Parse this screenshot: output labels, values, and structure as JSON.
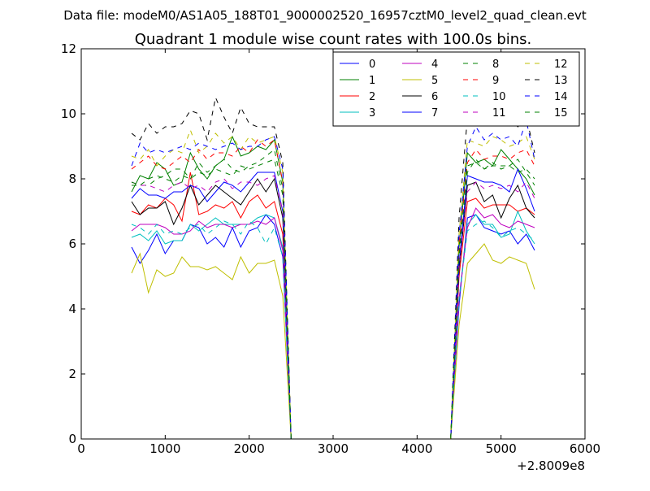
{
  "chart_data": {
    "type": "line",
    "suptitle": "Data file: modeM0/AS1A05_188T01_9000002520_16957cztM0_level2_quad_clean.evt",
    "title": "Quadrant 1 module wise count rates with 100.0s bins.",
    "xlabel": "",
    "ylabel": "",
    "x_offset_label": "+2.8009e8",
    "xlim": [
      0,
      6000
    ],
    "ylim": [
      0,
      12
    ],
    "xticks": [
      0,
      1000,
      2000,
      3000,
      4000,
      5000,
      6000
    ],
    "yticks": [
      0,
      2,
      4,
      6,
      8,
      10,
      12
    ],
    "xtick_labels": [
      "0",
      "1000",
      "2000",
      "3000",
      "4000",
      "5000",
      "6000"
    ],
    "ytick_labels": [
      "0",
      "2",
      "4",
      "6",
      "8",
      "10",
      "12"
    ],
    "grid": false,
    "legend_position": "top-right",
    "legend_columns": 4,
    "x": [
      600,
      700,
      800,
      900,
      1000,
      1100,
      1200,
      1300,
      1400,
      1500,
      1600,
      1700,
      1800,
      1900,
      2000,
      2100,
      2200,
      2300,
      2400,
      2500,
      2600,
      2700,
      2800,
      2900,
      3000,
      3100,
      3200,
      3300,
      3400,
      3500,
      3600,
      3700,
      3800,
      3900,
      4000,
      4100,
      4200,
      4300,
      4400,
      4500,
      4600,
      4700,
      4800,
      4900,
      5000,
      5100,
      5200,
      5300,
      5400
    ],
    "series": [
      {
        "name": "0",
        "color": "#0000ff",
        "dash": "solid",
        "values": [
          5.9,
          5.4,
          5.8,
          6.3,
          5.7,
          6.1,
          6.1,
          6.6,
          6.5,
          6.0,
          6.2,
          5.9,
          6.5,
          5.9,
          6.4,
          6.5,
          6.9,
          6.6,
          5.6,
          0,
          0,
          0,
          0,
          0,
          0,
          0,
          0,
          0,
          0,
          0,
          0,
          0,
          0,
          0,
          0,
          0,
          0,
          0,
          0,
          4.1,
          6.8,
          6.9,
          6.5,
          6.4,
          6.3,
          6.4,
          6.0,
          6.3,
          5.8
        ]
      },
      {
        "name": "1",
        "color": "#008000",
        "dash": "solid",
        "values": [
          7.6,
          8.1,
          8.0,
          8.5,
          8.3,
          7.8,
          7.9,
          8.8,
          8.3,
          8.0,
          8.4,
          8.6,
          9.3,
          8.7,
          8.8,
          9.0,
          8.9,
          9.2,
          7.9,
          0,
          0,
          0,
          0,
          0,
          0,
          0,
          0,
          0,
          0,
          0,
          0,
          0,
          0,
          0,
          0,
          0,
          0,
          0,
          0,
          5.9,
          8.8,
          8.5,
          8.6,
          8.4,
          8.9,
          8.6,
          8.3,
          8.0,
          7.5
        ]
      },
      {
        "name": "2",
        "color": "#ff0000",
        "dash": "solid",
        "values": [
          7.0,
          6.9,
          7.2,
          7.1,
          7.4,
          7.2,
          6.7,
          8.2,
          6.9,
          7.0,
          7.2,
          7.1,
          7.3,
          6.8,
          7.3,
          7.5,
          7.1,
          7.3,
          6.3,
          0,
          0,
          0,
          0,
          0,
          0,
          0,
          0,
          0,
          0,
          0,
          0,
          0,
          0,
          0,
          0,
          0,
          0,
          0,
          0,
          5.0,
          7.3,
          7.4,
          7.1,
          7.2,
          7.2,
          7.2,
          7.0,
          7.1,
          6.9
        ]
      },
      {
        "name": "3",
        "color": "#00bfbf",
        "dash": "solid",
        "values": [
          6.2,
          6.3,
          6.1,
          6.4,
          6.0,
          6.1,
          6.1,
          6.6,
          6.4,
          6.6,
          6.8,
          6.6,
          6.6,
          6.6,
          6.6,
          6.8,
          6.9,
          6.8,
          5.9,
          0,
          0,
          0,
          0,
          0,
          0,
          0,
          0,
          0,
          0,
          0,
          0,
          0,
          0,
          0,
          0,
          0,
          0,
          0,
          0,
          4.3,
          6.6,
          6.9,
          6.6,
          6.6,
          6.2,
          6.3,
          7.0,
          6.4,
          6.0
        ]
      },
      {
        "name": "4",
        "color": "#bf00bf",
        "dash": "solid",
        "values": [
          6.4,
          6.6,
          6.6,
          6.6,
          6.5,
          6.3,
          6.3,
          6.4,
          6.7,
          6.5,
          6.6,
          6.6,
          6.5,
          6.6,
          6.6,
          6.7,
          6.6,
          6.8,
          5.8,
          0,
          0,
          0,
          0,
          0,
          0,
          0,
          0,
          0,
          0,
          0,
          0,
          0,
          0,
          0,
          0,
          0,
          0,
          0,
          0,
          4.3,
          6.5,
          7.1,
          6.8,
          6.9,
          6.6,
          6.5,
          6.7,
          6.6,
          6.5
        ]
      },
      {
        "name": "5",
        "color": "#bfbf00",
        "dash": "solid",
        "values": [
          5.1,
          5.7,
          4.5,
          5.2,
          5.0,
          5.1,
          5.6,
          5.3,
          5.3,
          5.2,
          5.3,
          5.1,
          4.9,
          5.6,
          5.1,
          5.4,
          5.4,
          5.5,
          4.4,
          0,
          0,
          0,
          0,
          0,
          0,
          0,
          0,
          0,
          0,
          0,
          0,
          0,
          0,
          0,
          0,
          0,
          0,
          0,
          0,
          3.5,
          5.4,
          5.7,
          6.0,
          5.5,
          5.4,
          5.6,
          5.5,
          5.4,
          4.6
        ]
      },
      {
        "name": "6",
        "color": "#000000",
        "dash": "solid",
        "values": [
          7.3,
          6.9,
          7.1,
          7.1,
          7.3,
          6.6,
          7.1,
          7.8,
          7.2,
          7.5,
          7.8,
          7.6,
          7.4,
          7.2,
          7.6,
          8.0,
          7.6,
          8.0,
          6.8,
          0,
          0,
          0,
          0,
          0,
          0,
          0,
          0,
          0,
          0,
          0,
          0,
          0,
          0,
          0,
          0,
          0,
          0,
          0,
          0,
          5.2,
          7.8,
          7.9,
          7.3,
          7.5,
          6.8,
          7.4,
          7.8,
          7.1,
          6.8
        ]
      },
      {
        "name": "7",
        "color": "#0000ff",
        "dash": "solid",
        "values": [
          7.4,
          7.7,
          7.5,
          7.5,
          7.4,
          7.6,
          7.6,
          7.8,
          7.7,
          7.3,
          7.6,
          7.9,
          7.8,
          7.6,
          7.9,
          8.2,
          8.2,
          8.2,
          7.0,
          0,
          0,
          0,
          0,
          0,
          0,
          0,
          0,
          0,
          0,
          0,
          0,
          0,
          0,
          0,
          0,
          0,
          0,
          0,
          0,
          5.4,
          8.1,
          8.0,
          7.9,
          7.9,
          7.8,
          7.6,
          8.3,
          7.7,
          7.0
        ]
      },
      {
        "name": "8",
        "color": "#008000",
        "dash": "dashed",
        "values": [
          7.8,
          7.8,
          7.8,
          8.0,
          8.1,
          8.3,
          8.3,
          8.0,
          8.5,
          8.2,
          8.4,
          8.6,
          8.3,
          8.2,
          8.4,
          8.5,
          8.7,
          8.9,
          7.7,
          0,
          0,
          0,
          0,
          0,
          0,
          0,
          0,
          0,
          0,
          0,
          0,
          0,
          0,
          0,
          0,
          0,
          0,
          0,
          0,
          5.8,
          8.2,
          8.6,
          8.3,
          8.4,
          8.4,
          8.4,
          8.2,
          8.3,
          8.0
        ]
      },
      {
        "name": "9",
        "color": "#ff0000",
        "dash": "dashed",
        "values": [
          8.3,
          8.5,
          8.7,
          8.4,
          8.3,
          8.5,
          8.7,
          8.5,
          8.9,
          8.6,
          8.8,
          8.8,
          8.7,
          9.0,
          8.8,
          9.2,
          9.0,
          9.2,
          7.9,
          0,
          0,
          0,
          0,
          0,
          0,
          0,
          0,
          0,
          0,
          0,
          0,
          0,
          0,
          0,
          0,
          0,
          0,
          0,
          0,
          6.0,
          8.5,
          8.9,
          8.6,
          8.7,
          8.7,
          8.6,
          8.8,
          8.9,
          8.4
        ]
      },
      {
        "name": "10",
        "color": "#00bfbf",
        "dash": "dashed",
        "values": [
          6.6,
          6.5,
          6.3,
          6.6,
          6.3,
          6.4,
          6.3,
          6.5,
          6.6,
          6.3,
          6.5,
          6.7,
          6.6,
          6.3,
          6.7,
          6.5,
          6.0,
          6.5,
          5.6,
          0,
          0,
          0,
          0,
          0,
          0,
          0,
          0,
          0,
          0,
          0,
          0,
          0,
          0,
          0,
          0,
          0,
          0,
          0,
          0,
          4.3,
          6.4,
          6.6,
          6.7,
          6.5,
          6.2,
          6.4,
          6.5,
          6.3,
          6.1
        ]
      },
      {
        "name": "11",
        "color": "#bf00bf",
        "dash": "dashed",
        "values": [
          7.9,
          7.8,
          7.8,
          7.7,
          7.6,
          7.8,
          7.9,
          7.7,
          7.8,
          7.6,
          7.9,
          8.0,
          7.7,
          7.9,
          7.9,
          7.8,
          8.0,
          8.1,
          7.0,
          0,
          0,
          0,
          0,
          0,
          0,
          0,
          0,
          0,
          0,
          0,
          0,
          0,
          0,
          0,
          0,
          0,
          0,
          0,
          0,
          5.3,
          7.6,
          7.9,
          7.7,
          7.8,
          7.7,
          7.8,
          7.6,
          7.9,
          7.4
        ]
      },
      {
        "name": "12",
        "color": "#bfbf00",
        "dash": "dashed",
        "values": [
          8.7,
          8.6,
          8.9,
          8.4,
          8.7,
          8.9,
          8.8,
          9.5,
          8.8,
          9.0,
          9.4,
          9.1,
          9.3,
          8.9,
          9.3,
          9.1,
          9.2,
          9.3,
          8.2,
          0,
          0,
          0,
          0,
          0,
          0,
          0,
          0,
          0,
          0,
          0,
          0,
          0,
          0,
          0,
          0,
          0,
          0,
          0,
          0,
          6.3,
          9.2,
          9.1,
          9.0,
          9.3,
          9.2,
          9.0,
          9.1,
          9.3,
          8.6
        ]
      },
      {
        "name": "13",
        "color": "#000000",
        "dash": "dashed",
        "values": [
          9.4,
          9.2,
          9.7,
          9.4,
          9.6,
          9.6,
          9.7,
          10.1,
          10.0,
          9.2,
          10.5,
          9.9,
          9.4,
          10.2,
          9.7,
          9.6,
          9.6,
          9.6,
          8.5,
          0,
          0,
          0,
          0,
          0,
          0,
          0,
          0,
          0,
          0,
          0,
          0,
          0,
          0,
          0,
          0,
          0,
          0,
          0,
          0,
          6.8,
          9.9,
          10.2,
          10.1,
          9.7,
          9.8,
          10.0,
          9.6,
          9.9,
          8.8
        ]
      },
      {
        "name": "14",
        "color": "#0000ff",
        "dash": "dashed",
        "values": [
          8.4,
          9.1,
          8.8,
          8.9,
          8.8,
          8.9,
          9.0,
          8.9,
          9.1,
          9.0,
          8.9,
          9.0,
          9.1,
          8.9,
          9.0,
          9.0,
          9.2,
          9.3,
          8.3,
          0,
          0,
          0,
          0,
          0,
          0,
          0,
          0,
          0,
          0,
          0,
          0,
          0,
          0,
          0,
          0,
          0,
          0,
          0,
          0,
          6.3,
          9.0,
          9.6,
          9.2,
          9.4,
          9.2,
          9.3,
          9.0,
          9.8,
          8.6
        ]
      },
      {
        "name": "15",
        "color": "#008000",
        "dash": "dashed",
        "values": [
          7.9,
          7.8,
          8.0,
          8.1,
          8.0,
          7.9,
          8.1,
          8.0,
          8.2,
          8.1,
          8.3,
          8.2,
          8.1,
          8.4,
          8.3,
          8.4,
          8.5,
          8.6,
          7.5,
          0,
          0,
          0,
          0,
          0,
          0,
          0,
          0,
          0,
          0,
          0,
          0,
          0,
          0,
          0,
          0,
          0,
          0,
          0,
          0,
          5.6,
          8.4,
          8.5,
          8.3,
          8.5,
          8.3,
          8.4,
          8.6,
          8.2,
          7.8
        ]
      }
    ]
  }
}
